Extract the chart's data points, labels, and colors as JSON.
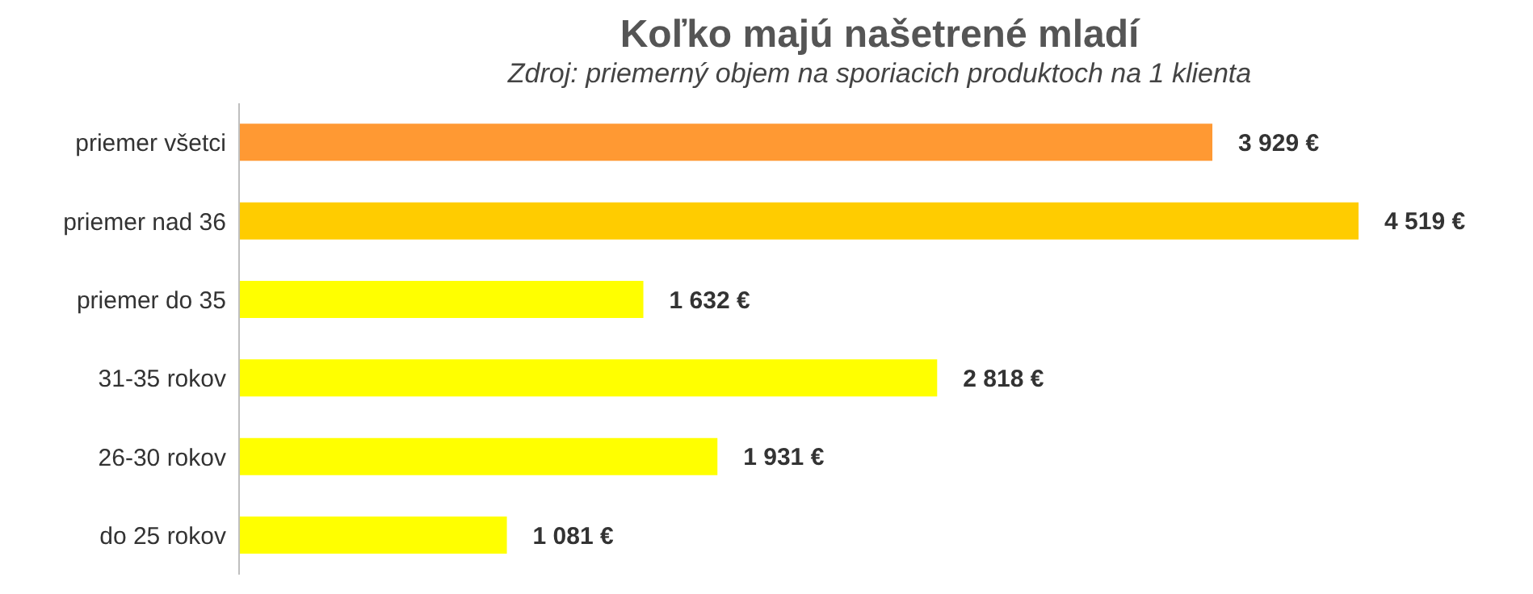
{
  "chart_data": {
    "type": "bar",
    "orientation": "horizontal",
    "title": "Koľko majú našetrené mladí",
    "subtitle": "Zdroj: priemerný objem na sporiacich produktoch na 1 klienta",
    "categories": [
      "priemer všetci",
      "priemer nad 36",
      "priemer do 35",
      "31-35 rokov",
      "26-30 rokov",
      "do 25 rokov"
    ],
    "values": [
      3929,
      4519,
      1632,
      2818,
      1931,
      1081
    ],
    "colors": [
      "#ff9933",
      "#ffcc00",
      "#ffff00",
      "#ffff00",
      "#ffff00",
      "#ffff00"
    ],
    "value_labels": [
      "3 929 €",
      "4 519 €",
      "1 632 €",
      "2 818 €",
      "1 931 €",
      "1 081 €"
    ],
    "tick_labels": "y"
  }
}
